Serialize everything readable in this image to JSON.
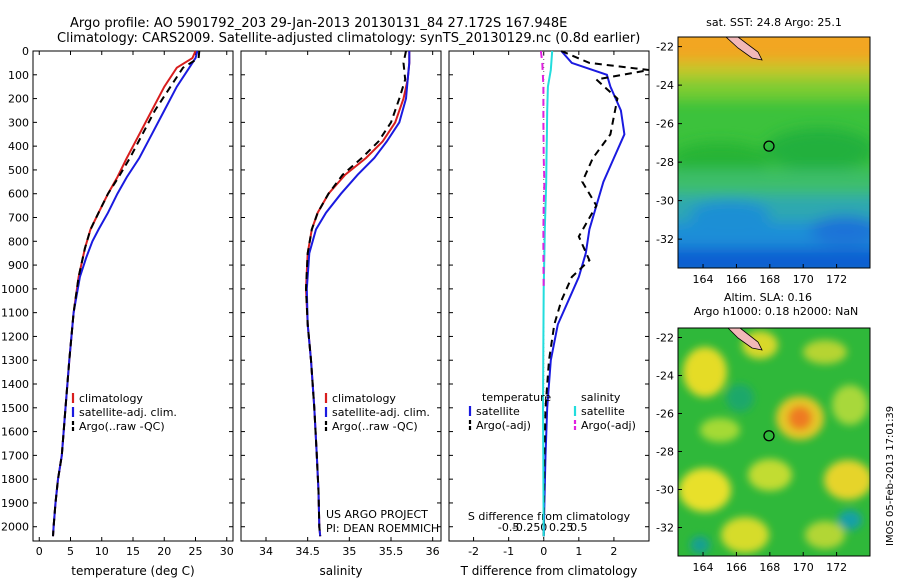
{
  "header": {
    "title_line1": "Argo profile: AO 5901792_203 29-Jan-2013 20130131_84 27.172S 167.948E",
    "title_line2": "Climatology: CARS2009. Satellite-adjusted climatology: synTS_20130129.nc (0.8d earlier)"
  },
  "footer": {
    "project": "US ARGO PROJECT",
    "pi": "PI: DEAN ROEMMICH",
    "stamp": "IMOS 05-Feb-2013 17:01:39"
  },
  "colors": {
    "climatology": "#d81e1e",
    "satellite": "#1a1ae0",
    "argo": "#000000",
    "sal_satellite": "#22dddd",
    "sal_argo": "#e020e0"
  },
  "chart_data": [
    {
      "type": "line",
      "name": "temperature",
      "xlabel": "temperature (deg C)",
      "ylabel": "",
      "xlim": [
        -1,
        31
      ],
      "ylim": [
        2060,
        0
      ],
      "xticks": [
        0,
        5,
        10,
        15,
        20,
        25,
        30
      ],
      "yticks": [
        0,
        100,
        200,
        300,
        400,
        500,
        600,
        700,
        800,
        900,
        1000,
        1100,
        1200,
        1300,
        1400,
        1500,
        1600,
        1700,
        1800,
        1900,
        2000
      ],
      "legend": [
        "climatology",
        "satellite-adj. clim.",
        "Argo(..raw -QC)"
      ],
      "legend_position": "bottom-center",
      "series": [
        {
          "name": "climatology",
          "color": "#d81e1e",
          "dash": "",
          "x": [
            25.0,
            24.5,
            22.0,
            20.0,
            18.0,
            16.0,
            14.0,
            12.5,
            11.0,
            9.5,
            8.2,
            7.3,
            6.3,
            5.5,
            4.8,
            4.2,
            3.6,
            3.0,
            2.6,
            2.3,
            2.2
          ],
          "y": [
            0,
            30,
            70,
            150,
            250,
            350,
            450,
            530,
            600,
            680,
            750,
            830,
            950,
            1100,
            1300,
            1500,
            1700,
            1800,
            1900,
            2000,
            2040
          ]
        },
        {
          "name": "satellite-adj. clim.",
          "color": "#1a1ae0",
          "dash": "",
          "x": [
            25.3,
            25.0,
            24.0,
            22.0,
            20.0,
            18.0,
            16.0,
            14.0,
            12.5,
            11.0,
            9.5,
            8.5,
            7.5,
            6.5,
            5.5,
            4.8,
            4.2,
            3.6,
            3.0,
            2.6,
            2.3,
            2.2
          ],
          "y": [
            0,
            30,
            70,
            150,
            250,
            350,
            450,
            530,
            600,
            680,
            750,
            800,
            870,
            950,
            1100,
            1300,
            1500,
            1700,
            1800,
            1900,
            2000,
            2040
          ]
        },
        {
          "name": "Argo(..raw -QC)",
          "color": "#000000",
          "dash": "7,5",
          "x": [
            25.6,
            25.5,
            23.0,
            21.0,
            18.5,
            16.5,
            14.5,
            12.7,
            11.0,
            9.5,
            8.2,
            7.3,
            6.3,
            5.5,
            4.8,
            4.2,
            3.6,
            3.0,
            2.6,
            2.3,
            2.2
          ],
          "y": [
            0,
            30,
            70,
            150,
            250,
            350,
            450,
            530,
            600,
            680,
            750,
            830,
            950,
            1100,
            1300,
            1500,
            1700,
            1800,
            1900,
            2000,
            2040
          ]
        }
      ]
    },
    {
      "type": "line",
      "name": "salinity",
      "xlabel": "salinity",
      "ylabel": "",
      "xlim": [
        33.7,
        36.1
      ],
      "ylim": [
        2060,
        0
      ],
      "xticks": [
        34,
        34.5,
        35,
        35.5,
        36
      ],
      "xticklabels": [
        "34",
        "34.5",
        "35",
        "35.5",
        "36"
      ],
      "legend": [
        "climatology",
        "satellite-adj. clim.",
        "Argo(..raw -QC)"
      ],
      "legend_position": "bottom-right",
      "series": [
        {
          "name": "climatology",
          "color": "#d81e1e",
          "dash": "",
          "x": [
            35.72,
            35.72,
            35.7,
            35.65,
            35.55,
            35.4,
            35.2,
            34.95,
            34.75,
            34.62,
            34.55,
            34.5,
            34.48,
            34.5,
            34.54,
            34.58,
            34.61,
            34.63,
            34.64,
            34.65
          ],
          "y": [
            0,
            50,
            120,
            200,
            300,
            380,
            450,
            520,
            600,
            680,
            750,
            850,
            1000,
            1150,
            1300,
            1500,
            1700,
            1850,
            2000,
            2040
          ]
        },
        {
          "name": "satellite-adj. clim.",
          "color": "#1a1ae0",
          "dash": "",
          "x": [
            35.72,
            35.72,
            35.7,
            35.68,
            35.6,
            35.45,
            35.3,
            35.1,
            34.9,
            34.72,
            34.6,
            34.52,
            34.49,
            34.5,
            34.54,
            34.58,
            34.61,
            34.63,
            34.64,
            34.65
          ],
          "y": [
            0,
            50,
            120,
            200,
            300,
            380,
            450,
            520,
            600,
            680,
            750,
            850,
            1000,
            1150,
            1300,
            1500,
            1700,
            1850,
            2000,
            2040
          ]
        },
        {
          "name": "Argo(..raw -QC)",
          "color": "#000000",
          "dash": "7,5",
          "x": [
            35.68,
            35.65,
            35.67,
            35.6,
            35.5,
            35.35,
            35.15,
            34.92,
            34.75,
            34.62,
            34.55,
            34.5,
            34.48,
            34.5,
            34.54,
            34.58,
            34.61,
            34.63,
            34.64,
            34.65
          ],
          "y": [
            0,
            50,
            120,
            200,
            300,
            380,
            450,
            520,
            600,
            680,
            750,
            850,
            1000,
            1150,
            1300,
            1500,
            1700,
            1850,
            2000,
            2040
          ]
        }
      ]
    },
    {
      "type": "line",
      "name": "differences",
      "xlabel": "T difference from climatology",
      "xlabel_top": "S difference from climatology",
      "xlim": [
        -2.7,
        3.0
      ],
      "ylim": [
        2060,
        0
      ],
      "xticks": [
        -2,
        -1,
        0,
        1,
        2
      ],
      "xticks_top": [
        -1.0,
        -0.5,
        0,
        0.5,
        1.0
      ],
      "xticklabels_top": [
        "-0.5",
        "-0.25",
        "0",
        "0.25",
        "0.5"
      ],
      "legend_titles": [
        "temperature",
        "salinity"
      ],
      "legend": [
        "satellite",
        "Argo(-adj)",
        "satellite",
        "Argo(-adj)"
      ],
      "legend_position": "bottom-center",
      "series": [
        {
          "name": "satellite",
          "color": "#1a1ae0",
          "dash": "",
          "x": [
            0.5,
            0.8,
            1.8,
            1.9,
            2.2,
            2.3,
            2.0,
            1.7,
            1.5,
            1.3,
            1.2,
            1.0,
            0.7,
            0.4,
            0.2,
            0.1,
            0.05,
            0.02,
            0.0
          ],
          "y": [
            0,
            50,
            100,
            150,
            250,
            350,
            450,
            550,
            650,
            750,
            850,
            950,
            1050,
            1150,
            1300,
            1500,
            1700,
            1900,
            2040
          ]
        },
        {
          "name": "Argo(-adj)",
          "color": "#000000",
          "dash": "7,5",
          "x": [
            0.5,
            1.3,
            3.0,
            1.5,
            2.1,
            1.9,
            1.4,
            1.1,
            1.5,
            1.0,
            1.3,
            0.8,
            0.5,
            0.3,
            0.15,
            0.05,
            0.02,
            0.0
          ],
          "y": [
            0,
            50,
            80,
            120,
            200,
            350,
            450,
            550,
            650,
            780,
            880,
            950,
            1050,
            1150,
            1300,
            1500,
            1700,
            2040
          ]
        },
        {
          "name": "satellite",
          "color": "#22dddd",
          "dash": "",
          "x": [
            0.24,
            0.2,
            0.12,
            0.1,
            0.09,
            0.08,
            0.07,
            0.05,
            0.03,
            0.02,
            0.0,
            -0.01,
            -0.02,
            0.0
          ],
          "y": [
            0,
            80,
            150,
            250,
            350,
            450,
            550,
            650,
            750,
            850,
            1000,
            1200,
            1500,
            2040
          ]
        },
        {
          "name": "Argo(-adj)",
          "color": "#e020e0",
          "dash": "7,5",
          "x": [
            -0.08,
            -0.04,
            -0.01,
            -0.01,
            0.0,
            0.02,
            0.0,
            -0.01,
            -0.01,
            0.0
          ],
          "y": [
            0,
            50,
            150,
            300,
            450,
            550,
            650,
            750,
            850,
            1000
          ]
        }
      ]
    },
    {
      "type": "heatmap",
      "name": "sst-map",
      "title": "sat. SST: 24.8 Argo: 25.1",
      "xlim": [
        162.5,
        174
      ],
      "ylim": [
        -33.5,
        -21.5
      ],
      "xticks": [
        164,
        166,
        168,
        170,
        172
      ],
      "yticks": [
        -22,
        -24,
        -26,
        -28,
        -30,
        -32
      ],
      "marker": {
        "lon": 167.95,
        "lat": -27.17
      }
    },
    {
      "type": "heatmap",
      "name": "sla-map",
      "title": "Altim. SLA: 0.16",
      "subtitle": "Argo h1000: 0.18 h2000: NaN",
      "xlim": [
        162.5,
        174
      ],
      "ylim": [
        -33.5,
        -21.5
      ],
      "xticks": [
        164,
        166,
        168,
        170,
        172
      ],
      "yticks": [
        -22,
        -24,
        -26,
        -28,
        -30,
        -32
      ],
      "marker": {
        "lon": 167.95,
        "lat": -27.17
      }
    }
  ]
}
